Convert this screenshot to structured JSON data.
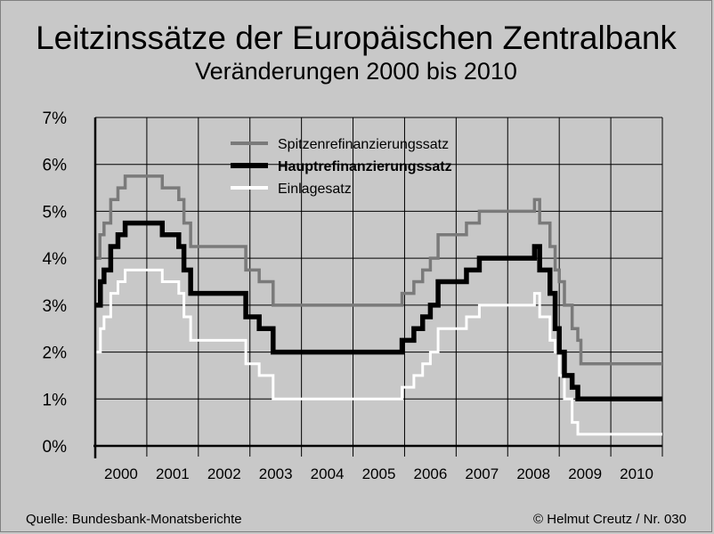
{
  "title": "Leitzinssätze der Europäischen Zentralbank",
  "subtitle": "Veränderungen 2000 bis 2010",
  "source": "Quelle: Bundesbank-Monatsberichte",
  "copyright": "©  Helmut Creutz / Nr. 030",
  "colors": {
    "background": "#c8c8c8",
    "grid": "#000000",
    "spitzen": "#7a7a7a",
    "haupt": "#000000",
    "einlage": "#ffffff"
  },
  "chart_data": {
    "type": "line",
    "title": "Leitzinssätze der Europäischen Zentralbank",
    "subtitle": "Veränderungen 2000 bis 2010",
    "xlabel": "",
    "ylabel": "",
    "xlim": [
      2000,
      2011
    ],
    "ylim": [
      0,
      7
    ],
    "grid": true,
    "legend_position": "top-center",
    "y_ticks": [
      "0%",
      "1%",
      "2%",
      "3%",
      "4%",
      "5%",
      "6%",
      "7%"
    ],
    "x_ticks": [
      "2000",
      "2001",
      "2002",
      "2003",
      "2004",
      "2005",
      "2006",
      "2007",
      "2008",
      "2009",
      "2010"
    ],
    "series": [
      {
        "name": "Spitzenrefinanzierungssatz",
        "style": "step",
        "points": [
          [
            2000.0,
            4.0
          ],
          [
            2000.09,
            4.5
          ],
          [
            2000.17,
            4.75
          ],
          [
            2000.3,
            5.25
          ],
          [
            2000.44,
            5.5
          ],
          [
            2000.58,
            5.75
          ],
          [
            2000.83,
            5.75
          ],
          [
            2001.3,
            5.5
          ],
          [
            2001.62,
            5.25
          ],
          [
            2001.72,
            4.75
          ],
          [
            2001.85,
            4.25
          ],
          [
            2002.92,
            3.75
          ],
          [
            2003.18,
            3.5
          ],
          [
            2003.45,
            3.0
          ],
          [
            2005.95,
            3.25
          ],
          [
            2006.18,
            3.5
          ],
          [
            2006.35,
            3.75
          ],
          [
            2006.5,
            4.0
          ],
          [
            2006.65,
            4.5
          ],
          [
            2006.98,
            4.5
          ],
          [
            2007.2,
            4.75
          ],
          [
            2007.45,
            5.0
          ],
          [
            2008.52,
            5.25
          ],
          [
            2008.62,
            4.75
          ],
          [
            2008.82,
            4.25
          ],
          [
            2008.92,
            3.75
          ],
          [
            2009.0,
            3.5
          ],
          [
            2009.1,
            3.0
          ],
          [
            2009.25,
            2.5
          ],
          [
            2009.36,
            2.25
          ],
          [
            2009.42,
            1.75
          ],
          [
            2011.0,
            1.75
          ]
        ]
      },
      {
        "name": "Hauptrefinanzierungssatz",
        "style": "step",
        "points": [
          [
            2000.0,
            3.0
          ],
          [
            2000.1,
            3.5
          ],
          [
            2000.17,
            3.75
          ],
          [
            2000.3,
            4.25
          ],
          [
            2000.44,
            4.5
          ],
          [
            2000.58,
            4.75
          ],
          [
            2000.83,
            4.75
          ],
          [
            2001.3,
            4.5
          ],
          [
            2001.62,
            4.25
          ],
          [
            2001.72,
            3.75
          ],
          [
            2001.85,
            3.25
          ],
          [
            2002.92,
            2.75
          ],
          [
            2003.18,
            2.5
          ],
          [
            2003.45,
            2.0
          ],
          [
            2005.95,
            2.25
          ],
          [
            2006.18,
            2.5
          ],
          [
            2006.35,
            2.75
          ],
          [
            2006.5,
            3.0
          ],
          [
            2006.65,
            3.5
          ],
          [
            2006.98,
            3.5
          ],
          [
            2007.2,
            3.75
          ],
          [
            2007.45,
            4.0
          ],
          [
            2008.52,
            4.25
          ],
          [
            2008.62,
            3.75
          ],
          [
            2008.82,
            3.25
          ],
          [
            2008.92,
            2.5
          ],
          [
            2009.0,
            2.0
          ],
          [
            2009.1,
            1.5
          ],
          [
            2009.25,
            1.25
          ],
          [
            2009.36,
            1.0
          ],
          [
            2011.0,
            1.0
          ]
        ]
      },
      {
        "name": "Einlagesatz",
        "style": "step",
        "points": [
          [
            2000.0,
            2.0
          ],
          [
            2000.1,
            2.5
          ],
          [
            2000.17,
            2.75
          ],
          [
            2000.3,
            3.25
          ],
          [
            2000.44,
            3.5
          ],
          [
            2000.58,
            3.75
          ],
          [
            2000.83,
            3.75
          ],
          [
            2001.3,
            3.5
          ],
          [
            2001.62,
            3.25
          ],
          [
            2001.72,
            2.75
          ],
          [
            2001.85,
            2.25
          ],
          [
            2002.92,
            1.75
          ],
          [
            2003.18,
            1.5
          ],
          [
            2003.45,
            1.0
          ],
          [
            2005.95,
            1.25
          ],
          [
            2006.18,
            1.5
          ],
          [
            2006.35,
            1.75
          ],
          [
            2006.5,
            2.0
          ],
          [
            2006.65,
            2.5
          ],
          [
            2006.98,
            2.5
          ],
          [
            2007.2,
            2.75
          ],
          [
            2007.45,
            3.0
          ],
          [
            2008.52,
            3.25
          ],
          [
            2008.62,
            2.75
          ],
          [
            2008.82,
            2.25
          ],
          [
            2008.92,
            2.0
          ],
          [
            2009.0,
            1.5
          ],
          [
            2009.1,
            1.0
          ],
          [
            2009.25,
            0.5
          ],
          [
            2009.36,
            0.25
          ],
          [
            2011.0,
            0.25
          ]
        ]
      }
    ]
  }
}
